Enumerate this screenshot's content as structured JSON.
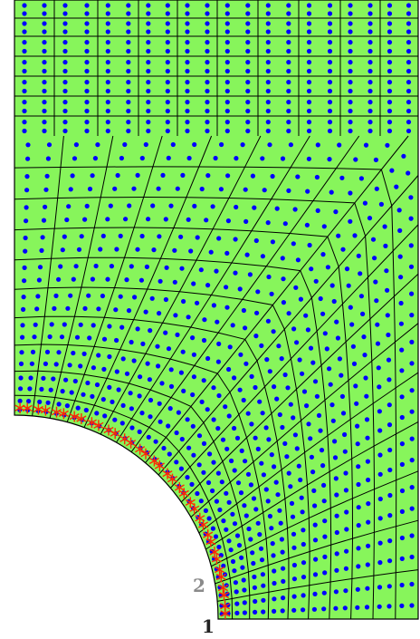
{
  "diagram": {
    "labels": {
      "corner_1": "1",
      "corner_2": "2"
    },
    "colors": {
      "fill": "#87f55b",
      "mesh_line": "#000000",
      "node": "#0000ff",
      "boundary_marker": "#ff2a00",
      "label_1": "#222222",
      "label_2": "#8a8a8a"
    }
  }
}
